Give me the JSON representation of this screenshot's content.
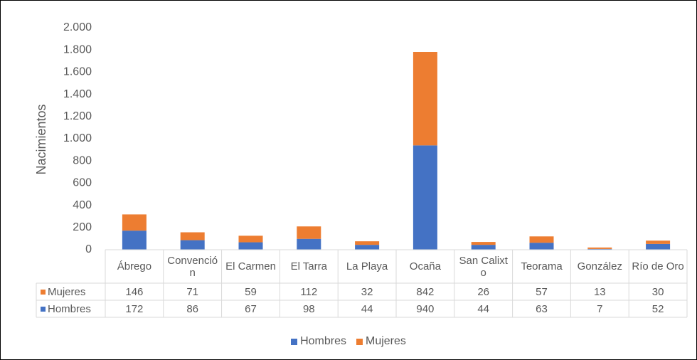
{
  "chart_data": {
    "type": "stacked_bar",
    "y_axis_label": "Nacimientos",
    "categories": [
      "Ábrego",
      "Convención",
      "El Carmen",
      "El Tarra",
      "La Playa",
      "Ocaña",
      "San Calixto",
      "Teorama",
      "González",
      "Río de Oro"
    ],
    "series": [
      {
        "name": "Hombres",
        "color": "#4472c4",
        "values": [
          172,
          86,
          67,
          98,
          44,
          940,
          44,
          63,
          7,
          52
        ]
      },
      {
        "name": "Mujeres",
        "color": "#ed7d31",
        "values": [
          146,
          71,
          59,
          112,
          32,
          842,
          26,
          57,
          13,
          30
        ]
      }
    ],
    "ylim": [
      0,
      2000
    ],
    "yticks": [
      0,
      200,
      400,
      600,
      800,
      {
        "value": 1000,
        "label": "1.000"
      },
      {
        "value": 1200,
        "label": "1.200"
      },
      {
        "value": 1400,
        "label": "1.400"
      },
      {
        "value": 1600,
        "label": "1.600"
      },
      {
        "value": 1800,
        "label": "1.800"
      },
      {
        "value": 2000,
        "label": "2.000"
      }
    ],
    "grid": false,
    "legend": "bottom"
  }
}
